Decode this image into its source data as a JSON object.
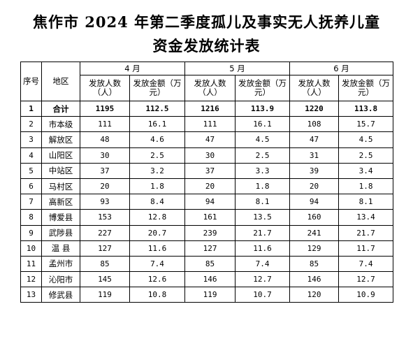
{
  "title_line1": "焦作市 2024 年第二季度孤儿及事实无人抚养儿童",
  "title_line2": "资金发放统计表",
  "headers": {
    "seq": "序号",
    "area": "地区",
    "months": [
      "4 月",
      "5 月",
      "6 月"
    ],
    "people": "发放人数（人）",
    "amount": "发放金额（万元）"
  },
  "rows": [
    {
      "seq": "1",
      "area": "合计",
      "m4p": "1195",
      "m4a": "112.5",
      "m5p": "1216",
      "m5a": "113.9",
      "m6p": "1220",
      "m6a": "113.8"
    },
    {
      "seq": "2",
      "area": "市本级",
      "m4p": "111",
      "m4a": "16.1",
      "m5p": "111",
      "m5a": "16.1",
      "m6p": "108",
      "m6a": "15.7"
    },
    {
      "seq": "3",
      "area": "解放区",
      "m4p": "48",
      "m4a": "4.6",
      "m5p": "47",
      "m5a": "4.5",
      "m6p": "47",
      "m6a": "4.5"
    },
    {
      "seq": "4",
      "area": "山阳区",
      "m4p": "30",
      "m4a": "2.5",
      "m5p": "30",
      "m5a": "2.5",
      "m6p": "31",
      "m6a": "2.5"
    },
    {
      "seq": "5",
      "area": "中站区",
      "m4p": "37",
      "m4a": "3.2",
      "m5p": "37",
      "m5a": "3.3",
      "m6p": "39",
      "m6a": "3.4"
    },
    {
      "seq": "6",
      "area": "马村区",
      "m4p": "20",
      "m4a": "1.8",
      "m5p": "20",
      "m5a": "1.8",
      "m6p": "20",
      "m6a": "1.8"
    },
    {
      "seq": "7",
      "area": "高新区",
      "m4p": "93",
      "m4a": "8.4",
      "m5p": "94",
      "m5a": "8.1",
      "m6p": "94",
      "m6a": "8.1"
    },
    {
      "seq": "8",
      "area": "博爱县",
      "m4p": "153",
      "m4a": "12.8",
      "m5p": "161",
      "m5a": "13.5",
      "m6p": "160",
      "m6a": "13.4"
    },
    {
      "seq": "9",
      "area": "武陟县",
      "m4p": "227",
      "m4a": "20.7",
      "m5p": "239",
      "m5a": "21.7",
      "m6p": "241",
      "m6a": "21.7"
    },
    {
      "seq": "10",
      "area": "温 县",
      "m4p": "127",
      "m4a": "11.6",
      "m5p": "127",
      "m5a": "11.6",
      "m6p": "129",
      "m6a": "11.7"
    },
    {
      "seq": "11",
      "area": "孟州市",
      "m4p": "85",
      "m4a": "7.4",
      "m5p": "85",
      "m5a": "7.4",
      "m6p": "85",
      "m6a": "7.4"
    },
    {
      "seq": "12",
      "area": "沁阳市",
      "m4p": "145",
      "m4a": "12.6",
      "m5p": "146",
      "m5a": "12.7",
      "m6p": "146",
      "m6a": "12.7"
    },
    {
      "seq": "13",
      "area": "修武县",
      "m4p": "119",
      "m4a": "10.8",
      "m5p": "119",
      "m5a": "10.7",
      "m6p": "120",
      "m6a": "10.9"
    }
  ]
}
